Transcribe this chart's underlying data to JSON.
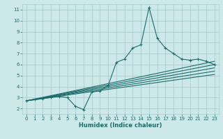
{
  "title": "",
  "xlabel": "Humidex (Indice chaleur)",
  "bg_color": "#cce8e8",
  "grid_color": "#aacccc",
  "line_color": "#1a6b6b",
  "xlim": [
    -0.5,
    23.5
  ],
  "ylim": [
    1.5,
    11.5
  ],
  "xticks": [
    0,
    1,
    2,
    3,
    4,
    5,
    6,
    7,
    8,
    9,
    10,
    11,
    12,
    13,
    14,
    15,
    16,
    17,
    18,
    19,
    20,
    21,
    22,
    23
  ],
  "yticks": [
    2,
    3,
    4,
    5,
    6,
    7,
    8,
    9,
    10,
    11
  ],
  "main_line": {
    "x": [
      0,
      1,
      2,
      3,
      4,
      5,
      6,
      7,
      8,
      9,
      10,
      11,
      12,
      13,
      14,
      15,
      16,
      17,
      18,
      19,
      20,
      21,
      22,
      23
    ],
    "y": [
      2.7,
      2.8,
      2.9,
      3.0,
      3.1,
      3.0,
      2.2,
      1.9,
      3.5,
      3.6,
      4.1,
      6.2,
      6.5,
      7.5,
      7.8,
      11.2,
      8.4,
      7.5,
      7.0,
      6.5,
      6.4,
      6.5,
      6.3,
      6.0
    ]
  },
  "straight_lines": [
    {
      "x": [
        0,
        23
      ],
      "y": [
        2.7,
        6.3
      ]
    },
    {
      "x": [
        0,
        23
      ],
      "y": [
        2.7,
        6.0
      ]
    },
    {
      "x": [
        0,
        23
      ],
      "y": [
        2.7,
        5.7
      ]
    },
    {
      "x": [
        0,
        23
      ],
      "y": [
        2.7,
        5.4
      ]
    },
    {
      "x": [
        0,
        23
      ],
      "y": [
        2.7,
        5.1
      ]
    }
  ],
  "marker": "+"
}
